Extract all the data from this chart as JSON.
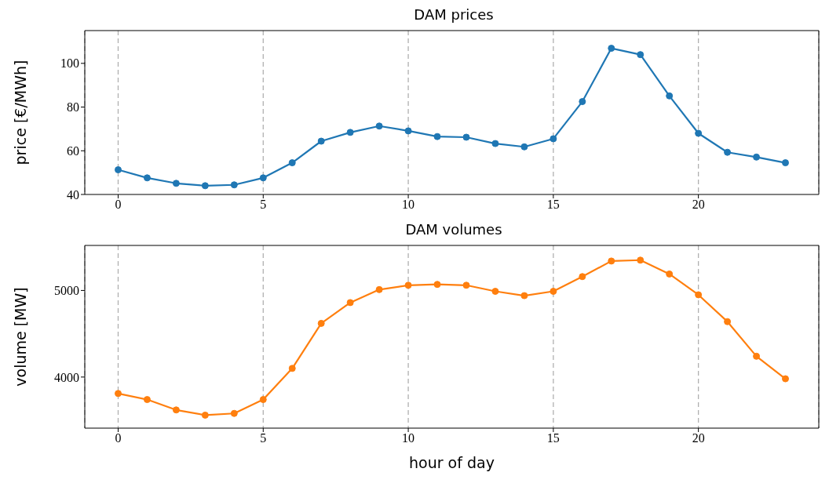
{
  "chart_data": [
    {
      "type": "line",
      "title": "DAM prices",
      "ylabel": "price [€/MWh]",
      "x": [
        0,
        1,
        2,
        3,
        4,
        5,
        6,
        7,
        8,
        9,
        10,
        11,
        12,
        13,
        14,
        15,
        16,
        17,
        18,
        19,
        20,
        21,
        22,
        23
      ],
      "series": [
        {
          "color": "#1f77b4",
          "values": [
            51.3,
            47.6,
            45.1,
            44.0,
            44.4,
            47.6,
            54.5,
            64.4,
            68.4,
            71.3,
            69.1,
            66.5,
            66.2,
            63.3,
            61.8,
            65.5,
            82.5,
            106.9,
            104,
            85.1,
            68,
            59.3,
            57.1,
            54.5
          ]
        }
      ],
      "xlim": [
        -1.15,
        24.15
      ],
      "xticks": [
        0,
        5,
        10,
        15,
        20
      ],
      "ylim": [
        40,
        115
      ],
      "yticks": [
        40,
        60,
        80,
        100
      ],
      "grid": "x",
      "marker": "circle",
      "line_style": "solid",
      "legend": false
    },
    {
      "type": "line",
      "title": "DAM volumes",
      "xlabel": "hour of day",
      "ylabel": "volume [MW]",
      "x": [
        0,
        1,
        2,
        3,
        4,
        5,
        6,
        7,
        8,
        9,
        10,
        11,
        12,
        13,
        14,
        15,
        16,
        17,
        18,
        19,
        20,
        21,
        22,
        23
      ],
      "series": [
        {
          "color": "#ff7f0e",
          "values": [
            3810,
            3740,
            3620,
            3560,
            3580,
            3740,
            4100,
            4620,
            4860,
            5010,
            5060,
            5070,
            5060,
            4990,
            4940,
            4990,
            5160,
            5340,
            5350,
            5190,
            4950,
            4640,
            4240,
            3980
          ]
        }
      ],
      "xlim": [
        -1.15,
        24.15
      ],
      "xticks": [
        0,
        5,
        10,
        15,
        20
      ],
      "ylim": [
        3410,
        5520
      ],
      "yticks": [
        4000,
        5000
      ],
      "grid": "x",
      "marker": "circle",
      "line_style": "solid",
      "legend": false
    }
  ]
}
